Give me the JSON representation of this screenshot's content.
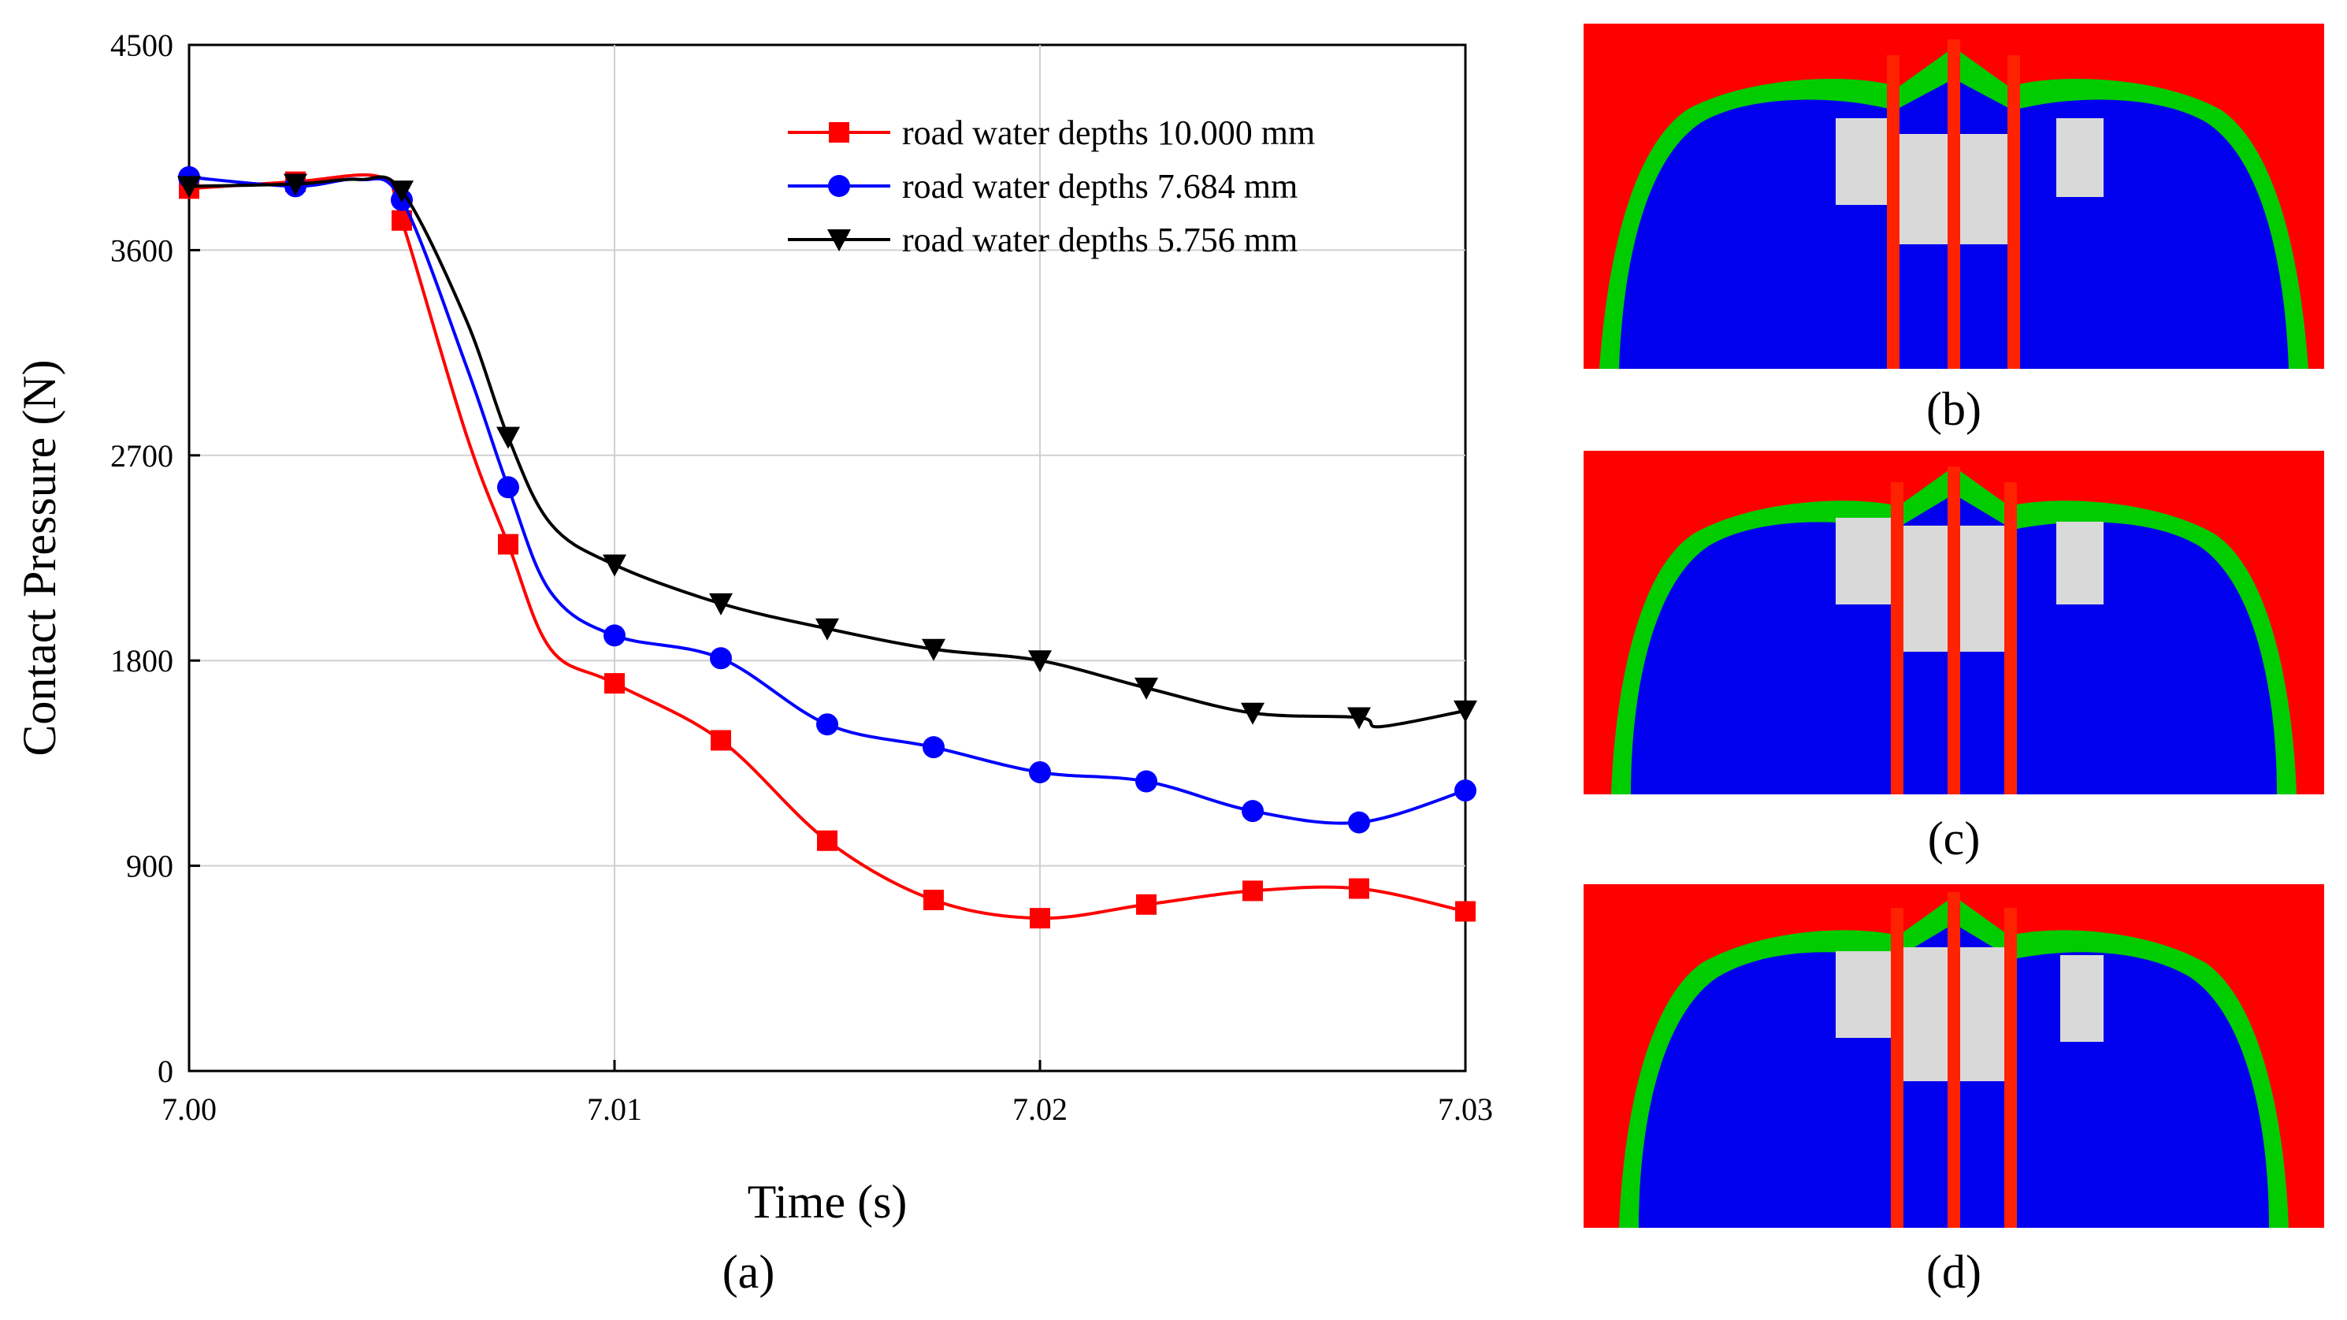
{
  "chart_data": {
    "type": "line",
    "xlabel": "Time (s)",
    "ylabel": "Contact Pressure (N)",
    "xlim": [
      7.0,
      7.03
    ],
    "ylim": [
      0,
      4500
    ],
    "xticks": [
      "7.00",
      "7.01",
      "7.02",
      "7.03"
    ],
    "yticks": [
      "0",
      "900",
      "1800",
      "2700",
      "3600",
      "4500"
    ],
    "grid": true,
    "legend_position": "top-right",
    "series": [
      {
        "name": "road water depths 10.000 mm",
        "color": "#ff0000",
        "marker": "square",
        "x": [
          7.0,
          7.0025,
          7.0045,
          7.005,
          7.0065,
          7.0075,
          7.0085,
          7.01,
          7.0125,
          7.015,
          7.0175,
          7.02,
          7.0225,
          7.025,
          7.0275,
          7.03
        ],
        "y": [
          3870,
          3900,
          3920,
          3730,
          2800,
          2310,
          1850,
          1700,
          1450,
          1010,
          750,
          670,
          730,
          790,
          800,
          700
        ]
      },
      {
        "name": "road water depths 7.684 mm",
        "color": "#0000ff",
        "marker": "circle",
        "x": [
          7.0,
          7.0025,
          7.004,
          7.005,
          7.0065,
          7.0075,
          7.0085,
          7.01,
          7.0125,
          7.015,
          7.0175,
          7.02,
          7.0225,
          7.025,
          7.0275,
          7.03
        ],
        "y": [
          3920,
          3880,
          3910,
          3820,
          3100,
          2560,
          2100,
          1910,
          1810,
          1520,
          1420,
          1310,
          1270,
          1140,
          1090,
          1230
        ]
      },
      {
        "name": "road water depths 5.756 mm",
        "color": "#000000",
        "marker": "triangle-down",
        "x": [
          7.0,
          7.0025,
          7.004,
          7.005,
          7.0065,
          7.0075,
          7.0085,
          7.01,
          7.0125,
          7.015,
          7.0175,
          7.02,
          7.0225,
          7.025,
          7.0275,
          7.028,
          7.03
        ],
        "y": [
          3880,
          3890,
          3910,
          3860,
          3300,
          2780,
          2400,
          2220,
          2050,
          1940,
          1850,
          1800,
          1680,
          1570,
          1550,
          1510,
          1580
        ]
      }
    ],
    "panels": [
      "(a)",
      "(b)",
      "(c)",
      "(d)"
    ]
  },
  "colors": {
    "contour_background": "#ff0000",
    "contour_low": "#0000ff",
    "contour_mid": "#00ff00",
    "contour_high": "#ffff00",
    "contour_void": "#d9d9d9"
  }
}
